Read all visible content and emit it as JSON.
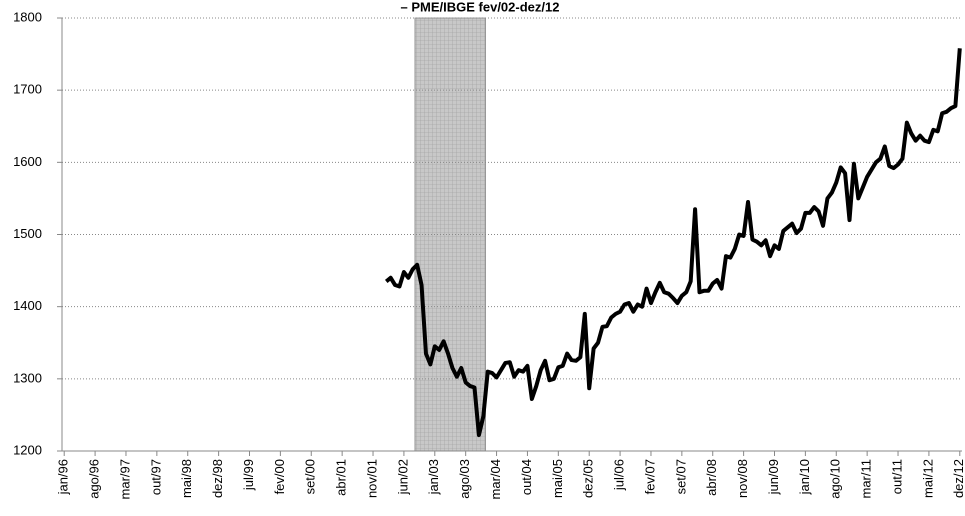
{
  "chart_data": {
    "type": "line",
    "title": "– PME/IBGE fev/02-dez/12",
    "categories": [
      "jan/96",
      null,
      null,
      null,
      null,
      null,
      null,
      "ago/96",
      null,
      null,
      null,
      null,
      null,
      null,
      "mar/97",
      null,
      null,
      null,
      null,
      null,
      null,
      "out/97",
      null,
      null,
      null,
      null,
      null,
      null,
      "mai/98",
      null,
      null,
      null,
      null,
      null,
      null,
      "dez/98",
      null,
      null,
      null,
      null,
      null,
      null,
      "jul/99",
      null,
      null,
      null,
      null,
      null,
      null,
      "fev/00",
      null,
      null,
      null,
      null,
      null,
      null,
      "set/00",
      null,
      null,
      null,
      null,
      null,
      null,
      "abr/01",
      null,
      null,
      null,
      null,
      null,
      null,
      "nov/01",
      null,
      null,
      null,
      null,
      null,
      null,
      "jun/02",
      null,
      null,
      null,
      null,
      null,
      null,
      "jan/03",
      null,
      null,
      null,
      null,
      null,
      null,
      "ago/03",
      null,
      null,
      null,
      null,
      null,
      null,
      "mar/04",
      null,
      null,
      null,
      null,
      null,
      null,
      "out/04",
      null,
      null,
      null,
      null,
      null,
      null,
      "mai/05",
      null,
      null,
      null,
      null,
      null,
      null,
      "dez/05",
      null,
      null,
      null,
      null,
      null,
      null,
      "jul/06",
      null,
      null,
      null,
      null,
      null,
      null,
      "fev/07",
      null,
      null,
      null,
      null,
      null,
      null,
      "set/07",
      null,
      null,
      null,
      null,
      null,
      null,
      "abr/08",
      null,
      null,
      null,
      null,
      null,
      null,
      "nov/08",
      null,
      null,
      null,
      null,
      null,
      null,
      "jun/09",
      null,
      null,
      null,
      null,
      null,
      null,
      "jan/10",
      null,
      null,
      null,
      null,
      null,
      null,
      "ago/10",
      null,
      null,
      null,
      null,
      null,
      null,
      "mar/11",
      null,
      null,
      null,
      null,
      null,
      null,
      "out/11",
      null,
      null,
      null,
      null,
      null,
      null,
      "mai/12",
      null,
      null,
      null,
      null,
      null,
      null,
      "dez/12"
    ],
    "series": [
      {
        "color": "#000000",
        "values": [
          null,
          null,
          null,
          null,
          null,
          null,
          null,
          null,
          null,
          null,
          null,
          null,
          null,
          null,
          null,
          null,
          null,
          null,
          null,
          null,
          null,
          null,
          null,
          null,
          null,
          null,
          null,
          null,
          null,
          null,
          null,
          null,
          null,
          null,
          null,
          null,
          null,
          null,
          null,
          null,
          null,
          null,
          null,
          null,
          null,
          null,
          null,
          null,
          null,
          null,
          null,
          null,
          null,
          null,
          null,
          null,
          null,
          null,
          null,
          null,
          null,
          null,
          null,
          null,
          null,
          null,
          null,
          null,
          null,
          null,
          null,
          null,
          null,
          1435,
          1440,
          1430,
          1428,
          1448,
          1440,
          1452,
          1458,
          1430,
          1335,
          1320,
          1345,
          1340,
          1352,
          1335,
          1315,
          1303,
          1315,
          1295,
          1290,
          1288,
          1222,
          1248,
          1310,
          1308,
          1302,
          1312,
          1322,
          1323,
          1303,
          1312,
          1310,
          1318,
          1272,
          1290,
          1312,
          1325,
          1298,
          1300,
          1316,
          1318,
          1335,
          1326,
          1325,
          1330,
          1390,
          1287,
          1342,
          1350,
          1372,
          1373,
          1385,
          1390,
          1393,
          1403,
          1405,
          1393,
          1403,
          1400,
          1425,
          1405,
          1420,
          1433,
          1420,
          1418,
          1412,
          1405,
          1415,
          1420,
          1435,
          1535,
          1420,
          1422,
          1422,
          1432,
          1437,
          1425,
          1470,
          1468,
          1480,
          1500,
          1498,
          1545,
          1493,
          1490,
          1485,
          1492,
          1470,
          1485,
          1480,
          1505,
          1510,
          1515,
          1502,
          1508,
          1530,
          1530,
          1538,
          1532,
          1512,
          1550,
          1558,
          1572,
          1593,
          1585,
          1520,
          1598,
          1550,
          1565,
          1580,
          1590,
          1600,
          1605,
          1622,
          1595,
          1592,
          1597,
          1605,
          1655,
          1640,
          1630,
          1637,
          1630,
          1628,
          1645,
          1643,
          1668,
          1670,
          1675,
          1678,
          1758
        ]
      }
    ],
    "highlight": [
      80,
      95
    ],
    "ylim": [
      1200,
      1800
    ],
    "yticks": [
      1200,
      1300,
      1400,
      1500,
      1600,
      1700,
      1800
    ],
    "grid": true
  }
}
